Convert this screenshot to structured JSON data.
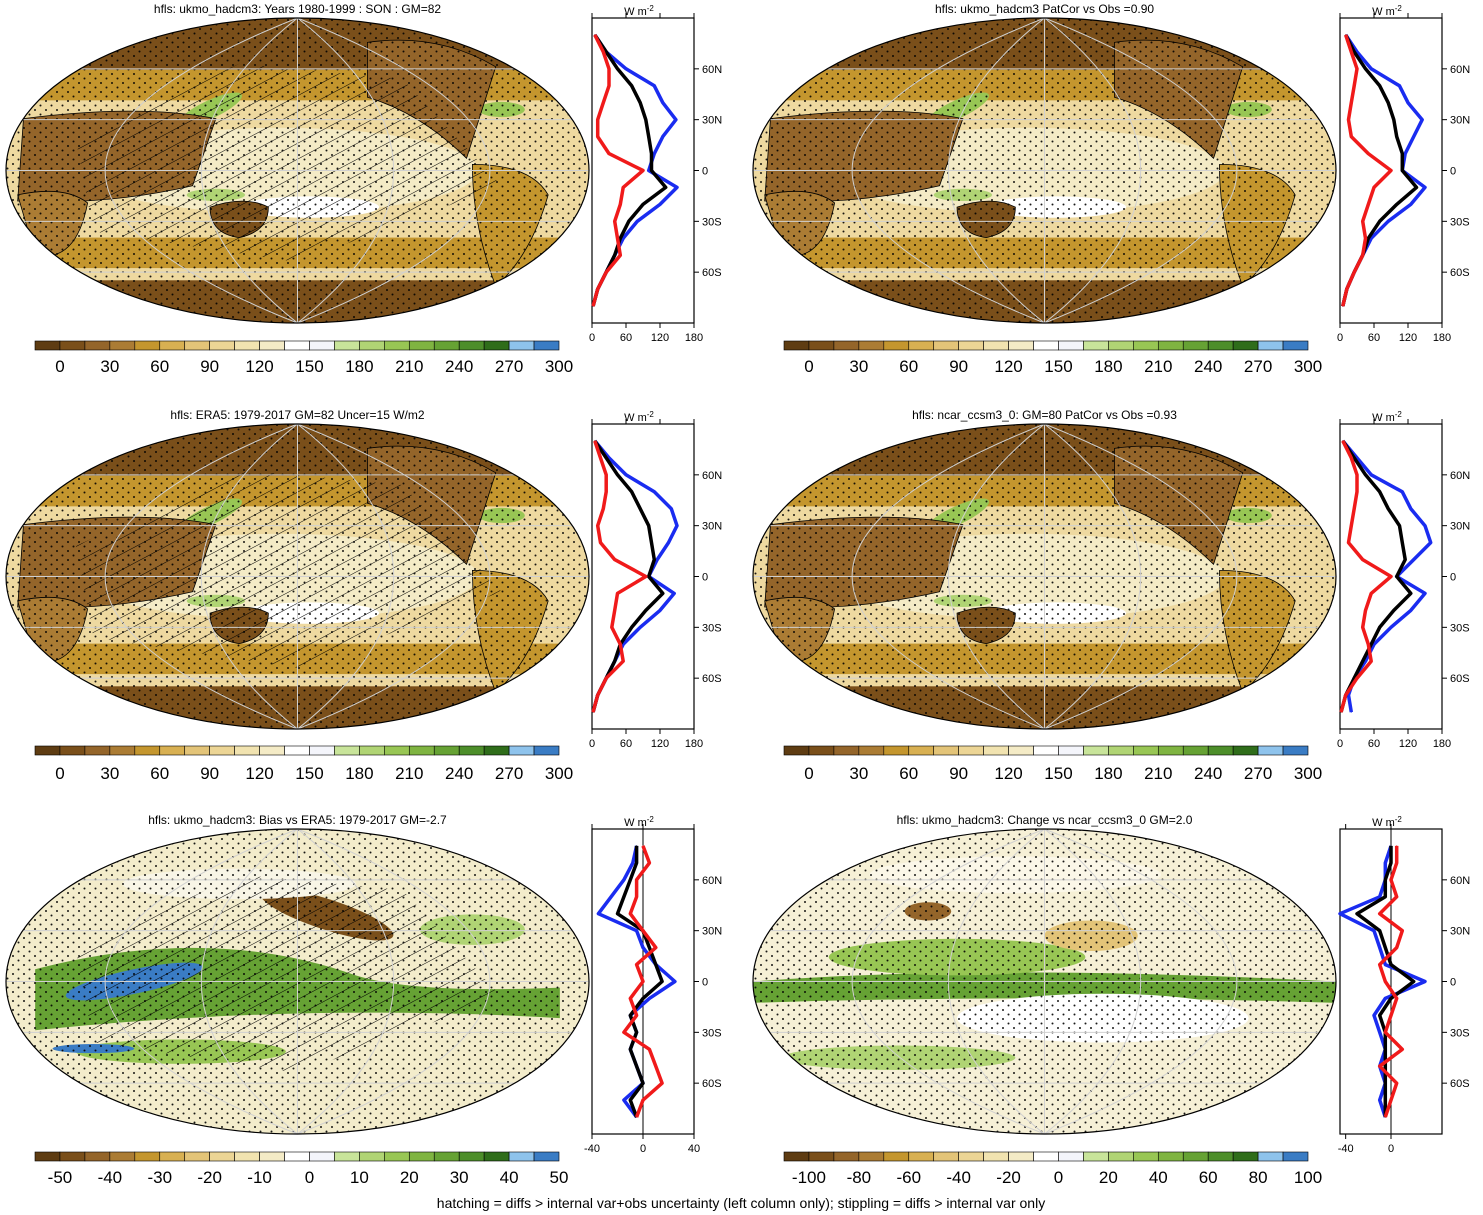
{
  "panels": [
    {
      "title": "hfls: ukmo_hadcm3: Years 1980-1999 : SON : GM=82",
      "map": "clim",
      "hatch": true,
      "cbar": "abs",
      "zonal": 0
    },
    {
      "title": "hfls: ukmo_hadcm3 PatCor vs Obs =0.90",
      "map": "clim",
      "hatch": false,
      "cbar": "abs",
      "zonal": 1
    },
    {
      "title": "hfls: ERA5: 1979-2017 GM=82 Uncer=15 W/m2",
      "map": "clim",
      "hatch": true,
      "cbar": "abs",
      "zonal": 2
    },
    {
      "title": "hfls: ncar_ccsm3_0: GM=80 PatCor vs Obs =0.93",
      "map": "clim2",
      "hatch": false,
      "cbar": "abs",
      "zonal": 3
    },
    {
      "title": "hfls: ukmo_hadcm3: Bias vs ERA5: 1979-2017  GM=-2.7",
      "map": "bias",
      "hatch": true,
      "cbar": "bias",
      "zonal": 4
    },
    {
      "title": "hfls: ukmo_hadcm3: Change vs ncar_ccsm3_0 GM=2.0",
      "map": "change",
      "hatch": false,
      "cbar": "change",
      "zonal": 5
    }
  ],
  "colorbars": {
    "abs": {
      "labels": [
        "0",
        "30",
        "60",
        "90",
        "120",
        "150",
        "180",
        "210",
        "240",
        "270",
        "300"
      ]
    },
    "bias": {
      "labels": [
        "-50",
        "-40",
        "-30",
        "-20",
        "-10",
        "0",
        "10",
        "20",
        "30",
        "40",
        "50"
      ]
    },
    "change": {
      "labels": [
        "-100",
        "-80",
        "-60",
        "-40",
        "-20",
        "0",
        "20",
        "40",
        "60",
        "80",
        "100"
      ]
    }
  },
  "palette": [
    "#5e3c12",
    "#7a4f1a",
    "#94652a",
    "#ab7c34",
    "#c4962e",
    "#d8b052",
    "#e3c478",
    "#ecd595",
    "#f1e3b0",
    "#f4ebc6",
    "#ffffff",
    "#f4f5fb",
    "#c8e49a",
    "#b0d474",
    "#98c654",
    "#7fb441",
    "#66a234",
    "#4d8e2a",
    "#2f6d1a",
    "#8ec3ec",
    "#3a7cc4"
  ],
  "lat_labels": [
    "60N",
    "30N",
    "0",
    "30S",
    "60S"
  ],
  "zonal_unit": "W m",
  "zonal_unit_sup": "-2",
  "chart_data": [
    {
      "type": "line",
      "title": "hfls: ukmo_hadcm3: Years 1980-1999 : SON : GM=82",
      "ylabel": "latitude",
      "x_ticks": [
        "0",
        "60",
        "120",
        "180"
      ],
      "xlim": [
        0,
        180
      ],
      "y": [
        80,
        70,
        60,
        50,
        40,
        30,
        20,
        10,
        0,
        -10,
        -20,
        -30,
        -40,
        -50,
        -60,
        -70,
        -80
      ],
      "series": [
        {
          "color": "blue",
          "values": [
            5,
            25,
            60,
            110,
            125,
            148,
            125,
            110,
            100,
            150,
            120,
            80,
            55,
            40,
            25,
            10,
            2
          ]
        },
        {
          "color": "black",
          "values": [
            5,
            25,
            45,
            70,
            85,
            95,
            100,
            105,
            105,
            130,
            90,
            65,
            50,
            40,
            25,
            10,
            2
          ]
        },
        {
          "color": "red",
          "values": [
            5,
            20,
            30,
            30,
            20,
            10,
            10,
            30,
            90,
            55,
            50,
            40,
            45,
            50,
            25,
            10,
            2
          ]
        }
      ]
    },
    {
      "type": "line",
      "title": "hfls: ukmo_hadcm3 PatCor vs Obs =0.90",
      "ylabel": "latitude",
      "x_ticks": [
        "0",
        "60",
        "120",
        "180"
      ],
      "xlim": [
        0,
        180
      ],
      "y": [
        80,
        70,
        60,
        50,
        40,
        30,
        20,
        10,
        0,
        -10,
        -20,
        -30,
        -40,
        -50,
        -60,
        -70,
        -80
      ],
      "series": [
        {
          "color": "blue",
          "values": [
            10,
            30,
            55,
            105,
            120,
            145,
            130,
            115,
            110,
            150,
            125,
            85,
            55,
            40,
            25,
            12,
            5
          ]
        },
        {
          "color": "black",
          "values": [
            10,
            25,
            45,
            70,
            85,
            95,
            100,
            110,
            110,
            135,
            100,
            70,
            50,
            40,
            25,
            12,
            5
          ]
        },
        {
          "color": "red",
          "values": [
            10,
            20,
            30,
            25,
            20,
            15,
            20,
            50,
            90,
            60,
            50,
            40,
            45,
            40,
            25,
            12,
            5
          ]
        }
      ]
    },
    {
      "type": "line",
      "title": "hfls: ERA5: 1979-2017 GM=82 Uncer=15 W/m2",
      "ylabel": "latitude",
      "x_ticks": [
        "0",
        "60",
        "120",
        "180"
      ],
      "xlim": [
        0,
        180
      ],
      "y": [
        80,
        70,
        60,
        50,
        40,
        30,
        20,
        10,
        0,
        -10,
        -20,
        -30,
        -40,
        -50,
        -60,
        -70,
        -80
      ],
      "series": [
        {
          "color": "blue",
          "values": [
            5,
            30,
            60,
            110,
            140,
            150,
            135,
            115,
            100,
            145,
            120,
            85,
            55,
            40,
            25,
            10,
            2
          ]
        },
        {
          "color": "black",
          "values": [
            5,
            25,
            45,
            70,
            85,
            100,
            105,
            110,
            100,
            125,
            95,
            70,
            50,
            40,
            25,
            10,
            2
          ]
        },
        {
          "color": "red",
          "values": [
            5,
            15,
            25,
            25,
            20,
            10,
            15,
            40,
            95,
            45,
            40,
            35,
            50,
            55,
            25,
            10,
            2
          ]
        }
      ]
    },
    {
      "type": "line",
      "title": "hfls: ncar_ccsm3_0: GM=80 PatCor vs Obs =0.93",
      "ylabel": "latitude",
      "x_ticks": [
        "0",
        "60",
        "120",
        "180"
      ],
      "xlim": [
        0,
        180
      ],
      "y": [
        80,
        70,
        60,
        50,
        40,
        30,
        20,
        10,
        0,
        -10,
        -20,
        -30,
        -40,
        -50,
        -60,
        -70,
        -80
      ],
      "series": [
        {
          "color": "blue",
          "values": [
            5,
            30,
            55,
            110,
            125,
            150,
            160,
            130,
            100,
            150,
            125,
            90,
            60,
            45,
            25,
            15,
            20
          ]
        },
        {
          "color": "black",
          "values": [
            5,
            25,
            45,
            70,
            85,
            105,
            110,
            115,
            100,
            125,
            95,
            70,
            55,
            40,
            25,
            10,
            2
          ]
        },
        {
          "color": "red",
          "values": [
            5,
            20,
            30,
            30,
            25,
            20,
            15,
            40,
            90,
            55,
            45,
            40,
            50,
            55,
            30,
            10,
            2
          ]
        }
      ]
    },
    {
      "type": "line",
      "title": "hfls: ukmo_hadcm3: Bias vs ERA5: 1979-2017  GM=-2.7",
      "ylabel": "latitude",
      "x_ticks": [
        "-40",
        "0",
        "40"
      ],
      "xlim": [
        -40,
        40
      ],
      "y": [
        80,
        70,
        60,
        50,
        40,
        30,
        20,
        10,
        0,
        -10,
        -20,
        -30,
        -40,
        -50,
        -60,
        -70,
        -80
      ],
      "series": [
        {
          "color": "blue",
          "values": [
            -5,
            -8,
            -15,
            -25,
            -35,
            -5,
            0,
            10,
            25,
            5,
            -10,
            -5,
            -10,
            -5,
            0,
            -15,
            -5
          ]
        },
        {
          "color": "black",
          "values": [
            -5,
            -5,
            -10,
            -15,
            -20,
            0,
            5,
            10,
            15,
            0,
            -10,
            -5,
            -10,
            -5,
            0,
            -10,
            -5
          ]
        },
        {
          "color": "red",
          "values": [
            0,
            5,
            -5,
            -5,
            -10,
            0,
            10,
            -5,
            0,
            -10,
            -5,
            -15,
            5,
            10,
            15,
            0,
            -5
          ]
        }
      ]
    },
    {
      "type": "line",
      "title": "hfls: ukmo_hadcm3: Change vs ncar_ccsm3_0 GM=2.0",
      "ylabel": "latitude",
      "x_ticks": [
        "-40",
        "0"
      ],
      "xlim": [
        -45,
        45
      ],
      "y": [
        80,
        70,
        60,
        50,
        40,
        30,
        20,
        10,
        0,
        -10,
        -20,
        -30,
        -40,
        -50,
        -60,
        -70,
        -80
      ],
      "series": [
        {
          "color": "blue",
          "values": [
            0,
            -5,
            -5,
            -10,
            -45,
            -15,
            -10,
            -5,
            30,
            -5,
            -15,
            -10,
            -5,
            -10,
            -5,
            -10,
            -5
          ]
        },
        {
          "color": "black",
          "values": [
            0,
            0,
            -5,
            -5,
            -30,
            -10,
            -5,
            0,
            20,
            0,
            -10,
            -5,
            -5,
            -5,
            -5,
            -5,
            -5
          ]
        },
        {
          "color": "red",
          "values": [
            5,
            5,
            0,
            5,
            -10,
            10,
            5,
            -10,
            -5,
            5,
            0,
            -5,
            10,
            -10,
            5,
            0,
            -5
          ]
        }
      ]
    }
  ],
  "footer": "hatching = diffs > internal var+obs uncertainty (left column only); stippling = diffs > internal var only"
}
